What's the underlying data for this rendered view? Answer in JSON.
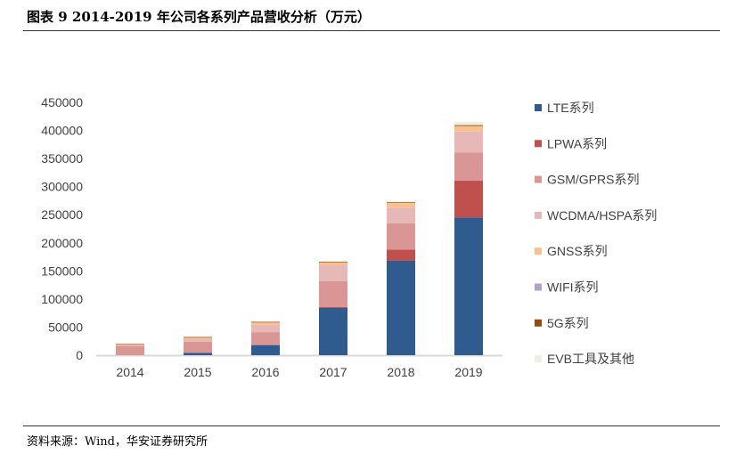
{
  "title": "图表 9 2014-2019 年公司各系列产品营收分析（万元）",
  "source": "资料来源：Wind，华安证券研究所",
  "chart_data": {
    "type": "bar",
    "stacked": true,
    "categories": [
      "2014",
      "2015",
      "2016",
      "2017",
      "2018",
      "2019"
    ],
    "ylim": [
      0,
      450000
    ],
    "yticks": [
      0,
      50000,
      100000,
      150000,
      200000,
      250000,
      300000,
      350000,
      400000,
      450000
    ],
    "grid": false,
    "legend_position": "right",
    "series": [
      {
        "name": "LTE系列",
        "color": "#2f5b8f",
        "values": [
          0,
          4000,
          18000,
          84000,
          168000,
          245000
        ]
      },
      {
        "name": "LPWA系列",
        "color": "#c0504d",
        "values": [
          0,
          0,
          0,
          2000,
          20000,
          66000
        ]
      },
      {
        "name": "GSM/GPRS系列",
        "color": "#d99694",
        "values": [
          16000,
          20000,
          23000,
          45500,
          47000,
          50000
        ]
      },
      {
        "name": "WCDMA/HSPA系列",
        "color": "#e6b9b8",
        "values": [
          3000,
          4500,
          13000,
          28500,
          27000,
          37000
        ]
      },
      {
        "name": "GNSS系列",
        "color": "#fac090",
        "values": [
          500,
          3500,
          5000,
          6000,
          10000,
          10000
        ]
      },
      {
        "name": "WIFI系列",
        "color": "#b3a2c7",
        "values": [
          0,
          0,
          0,
          0,
          0,
          1000
        ]
      },
      {
        "name": "5G系列",
        "color": "#984807",
        "values": [
          500,
          500,
          500,
          500,
          500,
          500
        ]
      },
      {
        "name": "EVB工具及其他",
        "color": "#ebf1de",
        "values": [
          1000,
          1000,
          1000,
          1000,
          1000,
          6000
        ]
      }
    ]
  }
}
